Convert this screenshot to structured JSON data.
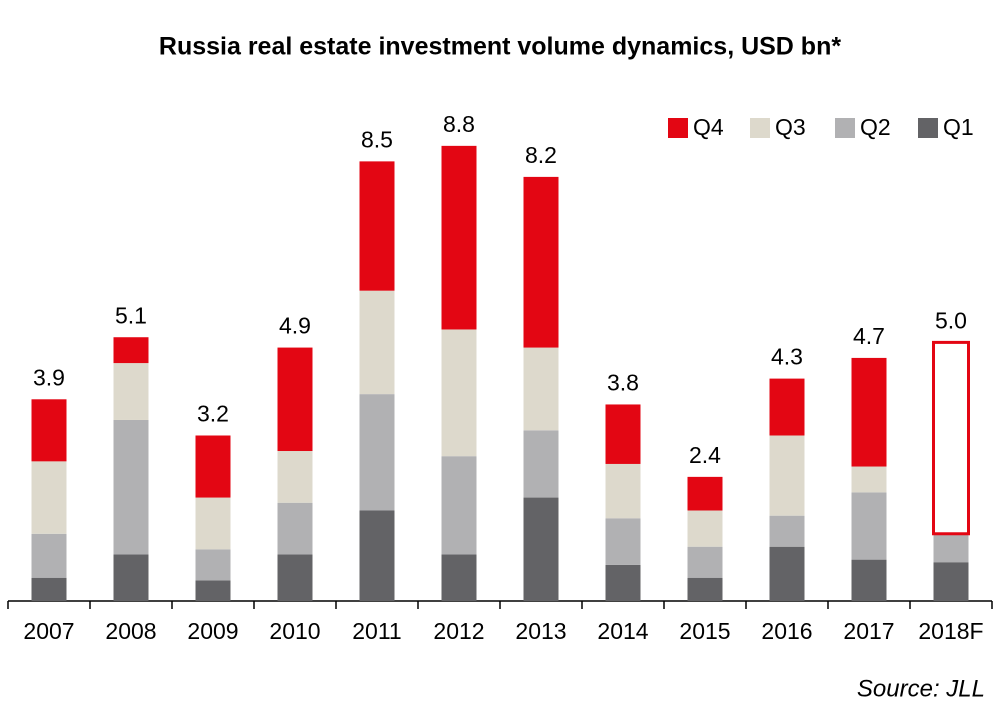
{
  "chart_data": {
    "type": "stacked_bar",
    "title": "Russia real estate investment volume dynamics, USD bn*",
    "source": "Source: JLL",
    "categories": [
      "2007",
      "2008",
      "2009",
      "2010",
      "2011",
      "2012",
      "2013",
      "2014",
      "2015",
      "2016",
      "2017",
      "2018F"
    ],
    "series": [
      {
        "name": "Q1",
        "color": "#636366",
        "values": [
          0.45,
          0.9,
          0.4,
          0.9,
          1.75,
          0.9,
          2.0,
          0.7,
          0.45,
          1.05,
          0.8,
          0.75
        ]
      },
      {
        "name": "Q2",
        "color": "#b1b1b3",
        "values": [
          0.85,
          2.6,
          0.6,
          1.0,
          2.25,
          1.9,
          1.3,
          0.9,
          0.6,
          0.6,
          1.3,
          0.55
        ]
      },
      {
        "name": "Q3",
        "color": "#ddd9cc",
        "values": [
          1.4,
          1.1,
          1.0,
          1.0,
          2.0,
          2.45,
          1.6,
          1.05,
          0.7,
          1.55,
          0.5,
          null
        ]
      },
      {
        "name": "Q4",
        "color": "#e30613",
        "values": [
          1.2,
          0.5,
          1.2,
          2.0,
          2.5,
          3.55,
          3.3,
          1.15,
          0.65,
          1.1,
          2.1,
          3.7
        ]
      }
    ],
    "totals": [
      3.9,
      5.1,
      3.2,
      4.9,
      8.5,
      8.8,
      8.2,
      3.8,
      2.4,
      4.3,
      4.7,
      5.0
    ],
    "total_labels": [
      "3.9",
      "5.1",
      "3.2",
      "4.9",
      "8.5",
      "8.8",
      "8.2",
      "3.8",
      "2.4",
      "4.3",
      "4.7",
      "5.0"
    ],
    "outlined_index": 11,
    "ylim": [
      0,
      9.3
    ],
    "legend": "top-right"
  }
}
